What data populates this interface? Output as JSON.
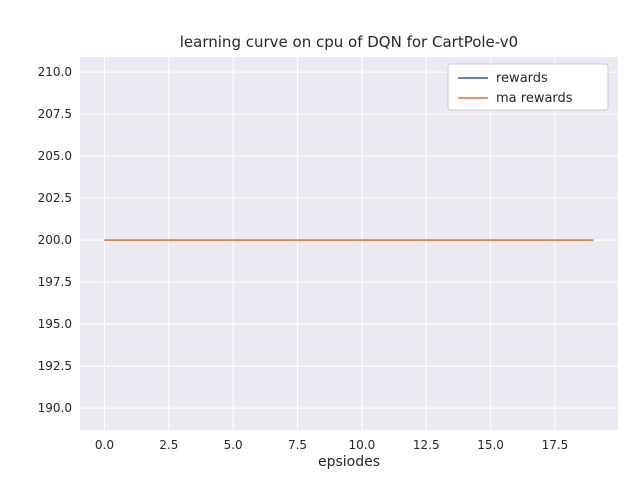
{
  "chart_data": {
    "type": "line",
    "title": "learning curve on cpu of DQN for CartPole-v0",
    "xlabel": "epsiodes",
    "ylabel": "",
    "x": [
      0,
      1,
      2,
      3,
      4,
      5,
      6,
      7,
      8,
      9,
      10,
      11,
      12,
      13,
      14,
      15,
      16,
      17,
      18,
      19
    ],
    "series": [
      {
        "name": "rewards",
        "color": "#4c72b0",
        "values": [
          200,
          200,
          200,
          200,
          200,
          200,
          200,
          200,
          200,
          200,
          200,
          200,
          200,
          200,
          200,
          200,
          200,
          200,
          200,
          200
        ]
      },
      {
        "name": "ma rewards",
        "color": "#dd8452",
        "values": [
          200,
          200,
          200,
          200,
          200,
          200,
          200,
          200,
          200,
          200,
          200,
          200,
          200,
          200,
          200,
          200,
          200,
          200,
          200,
          200
        ]
      }
    ],
    "x_ticks": [
      0.0,
      2.5,
      5.0,
      7.5,
      10.0,
      12.5,
      15.0,
      17.5
    ],
    "y_ticks": [
      190.0,
      192.5,
      195.0,
      197.5,
      200.0,
      202.5,
      205.0,
      207.5,
      210.0
    ],
    "xlim": [
      -0.95,
      19.95
    ],
    "ylim": [
      188.7,
      210.9
    ],
    "grid": true,
    "legend": {
      "position": "upper right",
      "entries": [
        "rewards",
        "ma rewards"
      ]
    },
    "style": {
      "figure_bg": "#ffffff",
      "axes_bg": "#eaeaf2",
      "grid_color": "#ffffff",
      "text_color": "#262626",
      "legend_bg": "#ffffff",
      "legend_border": "#cccccc"
    }
  }
}
